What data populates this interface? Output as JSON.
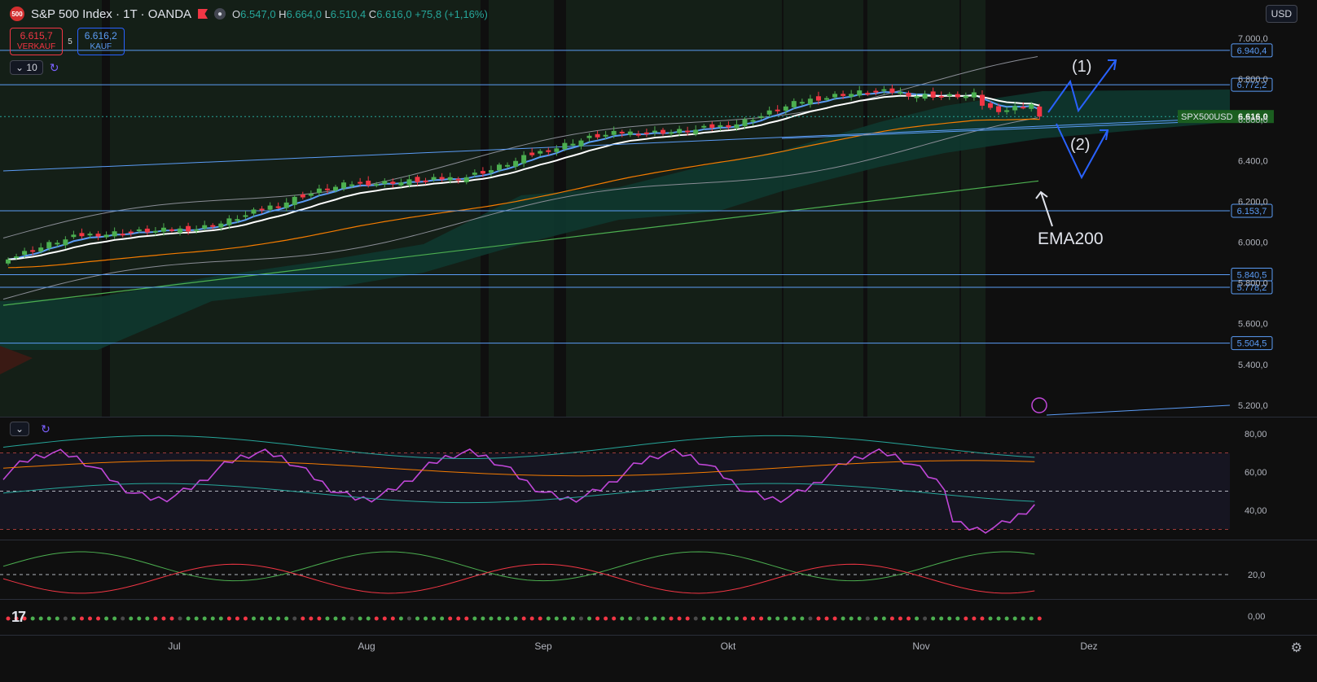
{
  "header": {
    "logo_text": "500",
    "symbol": "S&P 500 Index · 1T · OANDA",
    "eye_icon": "eye-icon",
    "ohlc": {
      "o_label": "O",
      "o": "6.547,0",
      "h_label": "H",
      "h": "6.664,0",
      "l_label": "L",
      "l": "6.510,4",
      "c_label": "C",
      "c": "6.616,0",
      "change": "+75,8 (+1,16%)"
    }
  },
  "trade": {
    "sell_price": "6.615,7",
    "sell_label": "VERKAUF",
    "spread": "5",
    "buy_price": "6.616,2",
    "buy_label": "KAUF"
  },
  "controls": {
    "interval": "10"
  },
  "currency": "USD",
  "price_axis": {
    "ticks": [
      "7.000,0",
      "6.800,0",
      "6.600,0",
      "6.400,0",
      "6.200,0",
      "6.000,0",
      "5.800,0",
      "5.600,0",
      "5.400,0",
      "5.200,0"
    ],
    "tick_values": [
      7000,
      6800,
      6600,
      6400,
      6200,
      6000,
      5800,
      5600,
      5400,
      5200
    ],
    "levels": [
      {
        "value": 6940.4,
        "label": "6.940,4"
      },
      {
        "value": 6772.2,
        "label": "6.772,2"
      },
      {
        "value": 6153.7,
        "label": "6.153,7"
      },
      {
        "value": 5840.5,
        "label": "5.840,5"
      },
      {
        "value": 5778.2,
        "label": "5.778,2"
      },
      {
        "value": 5504.5,
        "label": "5.504,5"
      }
    ],
    "current": {
      "symbol": "SPX500USD",
      "price": "6.616,0",
      "value": 6616
    }
  },
  "rsi_axis": {
    "ticks": [
      "80,00",
      "60,00",
      "40,00"
    ],
    "tick_values": [
      80,
      60,
      40
    ]
  },
  "adx_axis": {
    "ticks": [
      "20,0",
      "0,00"
    ],
    "tick_values": [
      20,
      0
    ]
  },
  "time_axis": [
    "Jul",
    "Aug",
    "Sep",
    "Okt",
    "Nov",
    "Dez"
  ],
  "annotations": {
    "wave1": "(1)",
    "wave2": "(2)",
    "ema_label": "EMA200"
  },
  "colors": {
    "up": "#26a69a",
    "up_bright": "#4caf50",
    "down": "#f23645",
    "ema_short": "#5b9cf6",
    "ema_mid": "#ffffff",
    "ema_long": "#f57c00",
    "ema200": "#4caf50",
    "rsi": "#c047d8",
    "level_line": "#5b9cf6"
  }
}
